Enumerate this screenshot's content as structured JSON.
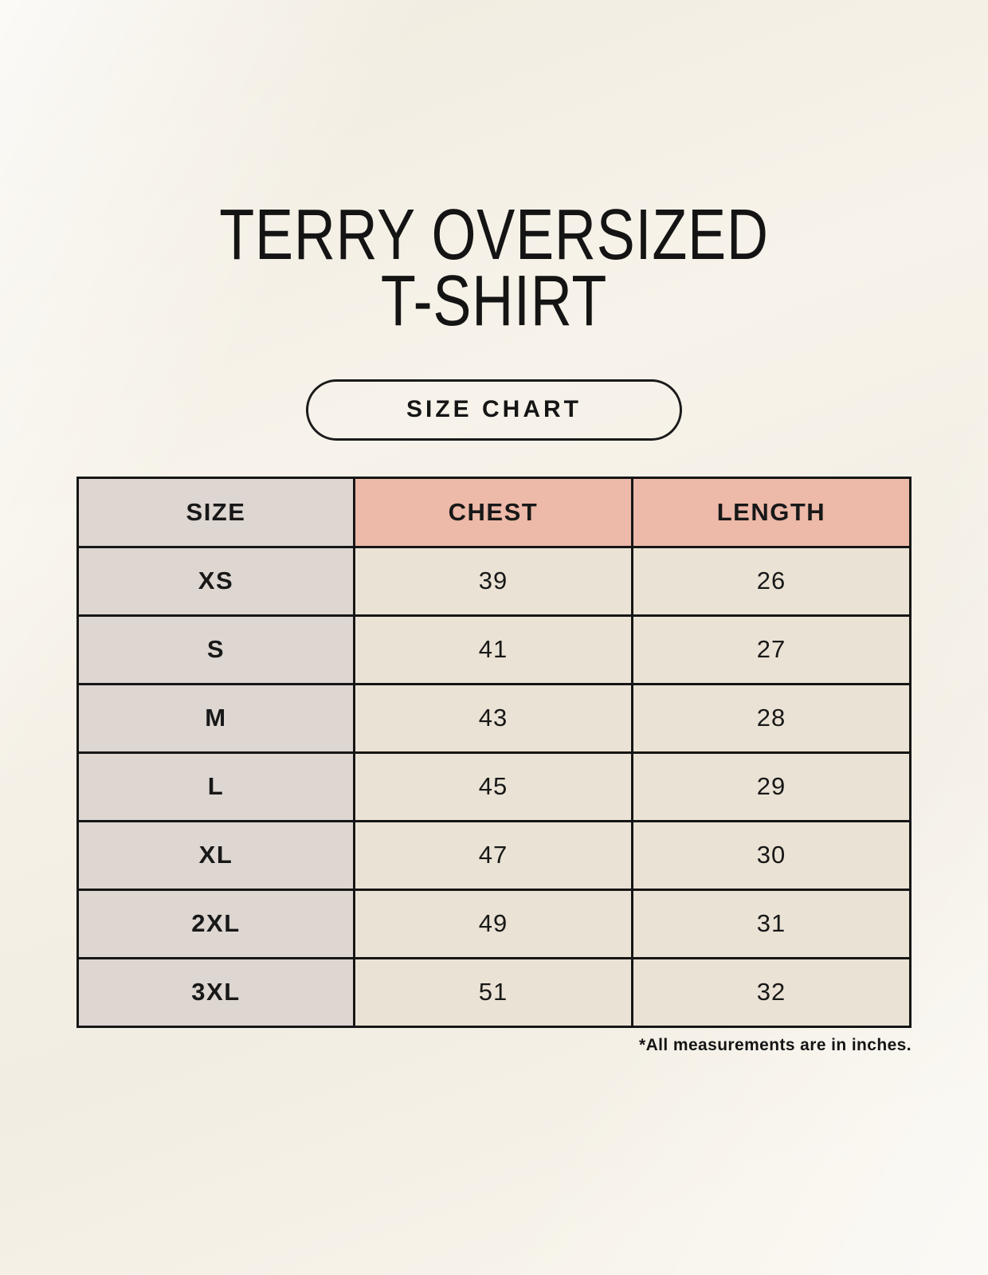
{
  "header": {
    "title_line1": "TERRY OVERSIZED",
    "title_line2": "T-SHIRT",
    "badge_label": "SIZE CHART"
  },
  "chart_data": {
    "type": "table",
    "title": "TERRY OVERSIZED T-SHIRT",
    "subtitle": "SIZE CHART",
    "columns": [
      "SIZE",
      "CHEST",
      "LENGTH"
    ],
    "rows": [
      [
        "XS",
        39,
        26
      ],
      [
        "S",
        41,
        27
      ],
      [
        "M",
        43,
        28
      ],
      [
        "L",
        45,
        29
      ],
      [
        "XL",
        47,
        30
      ],
      [
        "2XL",
        49,
        31
      ],
      [
        "3XL",
        51,
        32
      ]
    ],
    "footnote": "*All measurements are in inches.",
    "units": "inches"
  },
  "colors": {
    "background": "#f7f3ea",
    "header_accent": "#edb9a8",
    "size_column": "#ddd6d1",
    "cell": "#eae3d5",
    "border": "#161616"
  }
}
